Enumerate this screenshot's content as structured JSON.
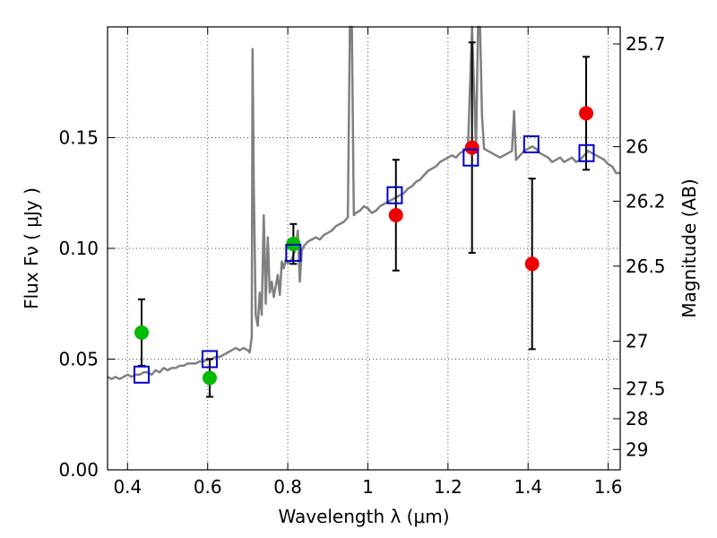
{
  "chart_data": {
    "type": "scatter",
    "xlabel": "Wavelength  λ (μm)",
    "ylabel": "Flux  Fν  ( μJy )",
    "y2label": "Magnitude (AB)",
    "xlim": [
      0.35,
      1.63
    ],
    "ylim": [
      0.0,
      0.2
    ],
    "grid": true,
    "x_ticks": [
      0.4,
      0.6,
      0.8,
      1.0,
      1.2,
      1.4,
      1.6
    ],
    "x_tick_labels": [
      "0.4",
      "0.6",
      "0.8",
      "1",
      "1.2",
      "1.4",
      "1.6"
    ],
    "y_ticks": [
      0.0,
      0.05,
      0.1,
      0.15
    ],
    "y_tick_labels": [
      "0.00",
      "0.05",
      "0.10",
      "0.15"
    ],
    "magnitude_ticks": [
      {
        "label": "25.7",
        "flux": 0.1923
      },
      {
        "label": "26",
        "flux": 0.1459
      },
      {
        "label": "26.2",
        "flux": 0.1213
      },
      {
        "label": "26.5",
        "flux": 0.092
      },
      {
        "label": "27",
        "flux": 0.0581
      },
      {
        "label": "27.5",
        "flux": 0.0366
      },
      {
        "label": "28",
        "flux": 0.0231
      },
      {
        "label": "29",
        "flux": 0.0092
      }
    ],
    "colors": {
      "model": "#808080",
      "green_points": "#00bb00",
      "red_points": "#ee0000",
      "model_boxes": "#0000cc",
      "error_bars": "#000000"
    },
    "series": [
      {
        "type": "line",
        "points": [
          [
            0.35,
            0.042
          ],
          [
            0.36,
            0.041
          ],
          [
            0.37,
            0.042
          ],
          [
            0.38,
            0.041
          ],
          [
            0.39,
            0.042
          ],
          [
            0.4,
            0.043
          ],
          [
            0.41,
            0.042
          ],
          [
            0.42,
            0.043
          ],
          [
            0.43,
            0.043
          ],
          [
            0.44,
            0.044
          ],
          [
            0.45,
            0.044
          ],
          [
            0.46,
            0.043
          ],
          [
            0.47,
            0.045
          ],
          [
            0.48,
            0.044
          ],
          [
            0.49,
            0.046
          ],
          [
            0.5,
            0.045
          ],
          [
            0.51,
            0.046
          ],
          [
            0.52,
            0.046
          ],
          [
            0.53,
            0.047
          ],
          [
            0.54,
            0.047
          ],
          [
            0.55,
            0.048
          ],
          [
            0.56,
            0.048
          ],
          [
            0.57,
            0.048
          ],
          [
            0.58,
            0.049
          ],
          [
            0.59,
            0.049
          ],
          [
            0.6,
            0.05
          ],
          [
            0.61,
            0.05
          ],
          [
            0.62,
            0.051
          ],
          [
            0.63,
            0.051
          ],
          [
            0.64,
            0.052
          ],
          [
            0.65,
            0.053
          ],
          [
            0.66,
            0.054
          ],
          [
            0.67,
            0.055
          ],
          [
            0.68,
            0.054
          ],
          [
            0.69,
            0.055
          ],
          [
            0.7,
            0.054
          ],
          [
            0.705,
            0.053
          ],
          [
            0.71,
            0.06
          ],
          [
            0.712,
            0.19
          ],
          [
            0.715,
            0.13
          ],
          [
            0.72,
            0.07
          ],
          [
            0.725,
            0.065
          ],
          [
            0.73,
            0.08
          ],
          [
            0.735,
            0.07
          ],
          [
            0.74,
            0.115
          ],
          [
            0.745,
            0.075
          ],
          [
            0.75,
            0.105
          ],
          [
            0.755,
            0.08
          ],
          [
            0.76,
            0.085
          ],
          [
            0.765,
            0.078
          ],
          [
            0.77,
            0.083
          ],
          [
            0.775,
            0.088
          ],
          [
            0.78,
            0.079
          ],
          [
            0.785,
            0.094
          ],
          [
            0.79,
            0.091
          ],
          [
            0.795,
            0.095
          ],
          [
            0.8,
            0.093
          ],
          [
            0.81,
            0.095
          ],
          [
            0.82,
            0.1
          ],
          [
            0.825,
            0.108
          ],
          [
            0.83,
            0.085
          ],
          [
            0.835,
            0.099
          ],
          [
            0.84,
            0.101
          ],
          [
            0.85,
            0.103
          ],
          [
            0.86,
            0.104
          ],
          [
            0.87,
            0.105
          ],
          [
            0.88,
            0.104
          ],
          [
            0.89,
            0.106
          ],
          [
            0.9,
            0.107
          ],
          [
            0.91,
            0.108
          ],
          [
            0.92,
            0.11
          ],
          [
            0.93,
            0.111
          ],
          [
            0.94,
            0.112
          ],
          [
            0.95,
            0.114
          ],
          [
            0.955,
            0.2
          ],
          [
            0.96,
            0.2
          ],
          [
            0.965,
            0.115
          ],
          [
            0.97,
            0.116
          ],
          [
            0.98,
            0.117
          ],
          [
            0.99,
            0.119
          ],
          [
            1.0,
            0.118
          ],
          [
            1.01,
            0.116
          ],
          [
            1.02,
            0.117
          ],
          [
            1.03,
            0.119
          ],
          [
            1.04,
            0.12
          ],
          [
            1.05,
            0.121
          ],
          [
            1.06,
            0.122
          ],
          [
            1.07,
            0.123
          ],
          [
            1.08,
            0.124
          ],
          [
            1.09,
            0.125
          ],
          [
            1.1,
            0.127
          ],
          [
            1.11,
            0.128
          ],
          [
            1.12,
            0.13
          ],
          [
            1.13,
            0.131
          ],
          [
            1.14,
            0.133
          ],
          [
            1.15,
            0.135
          ],
          [
            1.16,
            0.136
          ],
          [
            1.17,
            0.137
          ],
          [
            1.18,
            0.139
          ],
          [
            1.19,
            0.14
          ],
          [
            1.2,
            0.141
          ],
          [
            1.21,
            0.142
          ],
          [
            1.22,
            0.141
          ],
          [
            1.23,
            0.143
          ],
          [
            1.24,
            0.144
          ],
          [
            1.25,
            0.146
          ],
          [
            1.26,
            0.2
          ],
          [
            1.27,
            0.145
          ],
          [
            1.275,
            0.2
          ],
          [
            1.28,
            0.2
          ],
          [
            1.285,
            0.16
          ],
          [
            1.29,
            0.145
          ],
          [
            1.3,
            0.144
          ],
          [
            1.31,
            0.143
          ],
          [
            1.32,
            0.142
          ],
          [
            1.33,
            0.141
          ],
          [
            1.34,
            0.142
          ],
          [
            1.35,
            0.143
          ],
          [
            1.36,
            0.144
          ],
          [
            1.365,
            0.162
          ],
          [
            1.37,
            0.14
          ],
          [
            1.38,
            0.142
          ],
          [
            1.39,
            0.144
          ],
          [
            1.4,
            0.145
          ],
          [
            1.41,
            0.146
          ],
          [
            1.42,
            0.145
          ],
          [
            1.43,
            0.143
          ],
          [
            1.44,
            0.142
          ],
          [
            1.45,
            0.141
          ],
          [
            1.46,
            0.139
          ],
          [
            1.47,
            0.14
          ],
          [
            1.48,
            0.141
          ],
          [
            1.49,
            0.139
          ],
          [
            1.5,
            0.14
          ],
          [
            1.51,
            0.141
          ],
          [
            1.52,
            0.139
          ],
          [
            1.53,
            0.14
          ],
          [
            1.54,
            0.142
          ],
          [
            1.55,
            0.144
          ],
          [
            1.56,
            0.143
          ],
          [
            1.57,
            0.142
          ],
          [
            1.58,
            0.141
          ],
          [
            1.59,
            0.14
          ],
          [
            1.6,
            0.138
          ],
          [
            1.61,
            0.137
          ],
          [
            1.62,
            0.134
          ],
          [
            1.63,
            0.134
          ]
        ]
      },
      {
        "type": "scatter",
        "points": [
          {
            "x": 0.435,
            "y": 0.062,
            "yerr": 0.015
          },
          {
            "x": 0.605,
            "y": 0.0415,
            "yerr": 0.0085
          },
          {
            "x": 0.814,
            "y": 0.102,
            "yerr": 0.009
          }
        ]
      },
      {
        "type": "scatter",
        "points": [
          {
            "x": 1.07,
            "y": 0.115,
            "yerr": 0.025
          },
          {
            "x": 1.26,
            "y": 0.1455,
            "yerr": 0.0475
          },
          {
            "x": 1.41,
            "y": 0.093,
            "yerr": 0.0385
          },
          {
            "x": 1.545,
            "y": 0.161,
            "yerr": 0.0255
          }
        ]
      },
      {
        "type": "scatter",
        "marker": "square",
        "points": [
          {
            "x": 0.435,
            "y": 0.043
          },
          {
            "x": 0.605,
            "y": 0.05
          },
          {
            "x": 0.814,
            "y": 0.098
          },
          {
            "x": 1.067,
            "y": 0.124
          },
          {
            "x": 1.257,
            "y": 0.141
          },
          {
            "x": 1.408,
            "y": 0.147
          },
          {
            "x": 1.546,
            "y": 0.143
          }
        ]
      }
    ]
  }
}
